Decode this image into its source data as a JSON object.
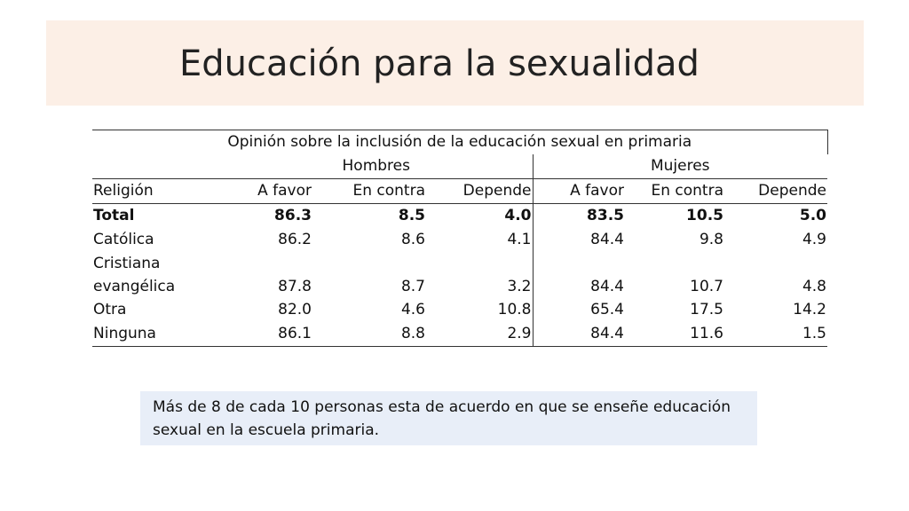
{
  "title": "Educación para la sexualidad",
  "note": "Más de 8 de cada 10 personas esta de acuerdo en que se enseñe educación sexual en la escuela primaria.",
  "chart_data": {
    "type": "table",
    "title": "Opinión sobre la inclusión de la educación sexual en primaria",
    "groups": [
      "Hombres",
      "Mujeres"
    ],
    "columns": [
      "Religión",
      "A favor",
      "En contra",
      "Depende",
      "A favor",
      "En contra",
      "Depende"
    ],
    "rows": [
      {
        "label": "Total",
        "values": [
          "86.3",
          "8.5",
          "4.0",
          "83.5",
          "10.5",
          "5.0"
        ]
      },
      {
        "label": "Católica",
        "values": [
          "86.2",
          "8.6",
          "4.1",
          "84.4",
          "9.8",
          "4.9"
        ]
      },
      {
        "label_line1": "Cristiana",
        "label_line2": "evangélica",
        "values": [
          "87.8",
          "8.7",
          "3.2",
          "84.4",
          "10.7",
          "4.8"
        ]
      },
      {
        "label": "Otra",
        "values": [
          "82.0",
          "4.6",
          "10.8",
          "65.4",
          "17.5",
          "14.2"
        ]
      },
      {
        "label": "Ninguna",
        "values": [
          "86.1",
          "8.8",
          "2.9",
          "84.4",
          "11.6",
          "1.5"
        ]
      }
    ]
  }
}
